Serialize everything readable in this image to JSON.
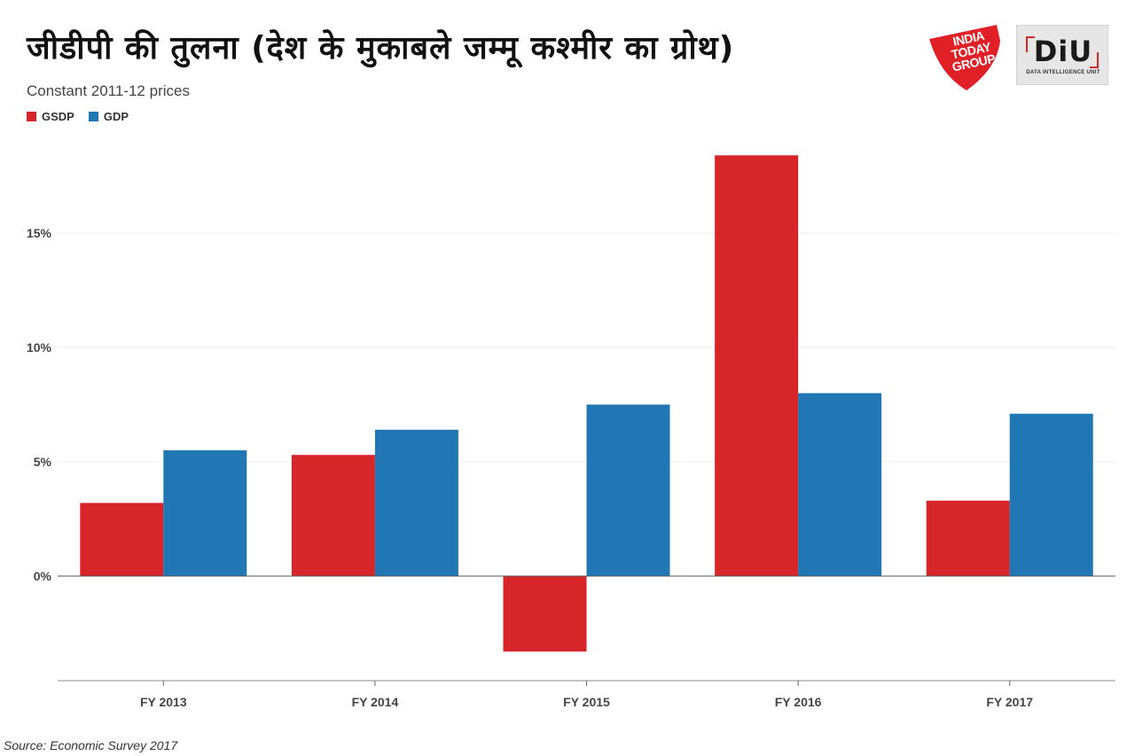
{
  "header": {
    "title": "जीडीपी की तुलना (देश के मुकाबले जम्मू कश्मीर का ग्रोथ)",
    "subtitle": "Constant 2011-12 prices"
  },
  "logos": {
    "india_today": [
      "INDIA",
      "TODAY",
      "GROUP"
    ],
    "diu": "DiU",
    "diu_sub": "DATA INTELLIGENCE UNIT"
  },
  "source": "Source: Economic Survey 2017",
  "colors": {
    "gsdp": "#d7262a",
    "gdp": "#2077b4",
    "india_today_red": "#e02026"
  },
  "chart_data": {
    "type": "bar",
    "title": "जीडीपी की तुलना (देश के मुकाबले जम्मू कश्मीर का ग्रोथ)",
    "subtitle": "Constant 2011-12 prices",
    "categories": [
      "FY 2013",
      "FY 2014",
      "FY 2015",
      "FY 2016",
      "FY 2017"
    ],
    "series": [
      {
        "name": "GSDP",
        "values": [
          3.2,
          5.3,
          -3.3,
          18.4,
          3.3
        ]
      },
      {
        "name": "GDP",
        "values": [
          5.5,
          6.4,
          7.5,
          8.0,
          7.1
        ]
      }
    ],
    "yticks": [
      0,
      5,
      10,
      15
    ],
    "ytick_labels": [
      "0%",
      "5%",
      "10%",
      "15%"
    ],
    "ylim": [
      -4.5,
      19
    ],
    "xlabel": "",
    "ylabel": "",
    "grid": true,
    "legend_position": "top-left"
  }
}
